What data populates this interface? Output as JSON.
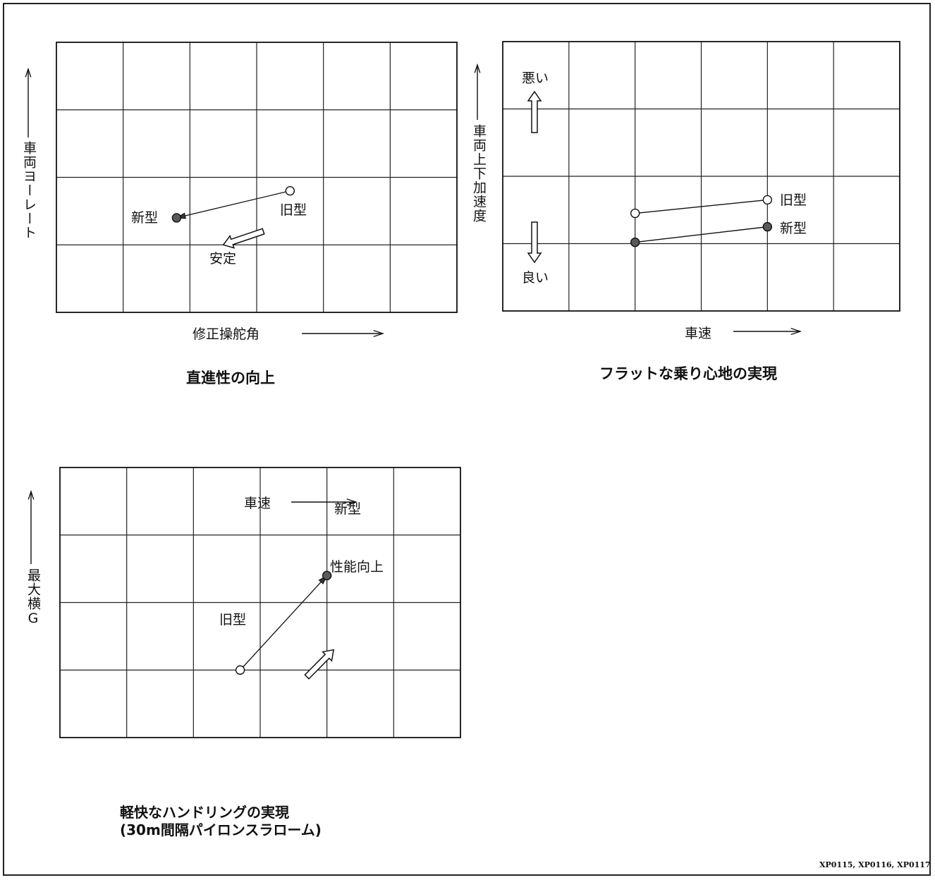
{
  "chart_data": [
    {
      "type": "scatter",
      "title": "直進性の向上",
      "xlabel": "修正操舵角",
      "ylabel": "車両ヨーレート",
      "grid": true,
      "series": [
        {
          "name": "旧型",
          "marker": "open-circle",
          "points": [
            [
              3.5,
              1.8
            ]
          ]
        },
        {
          "name": "新型",
          "marker": "filled-circle",
          "points": [
            [
              1.8,
              1.4
            ]
          ]
        }
      ],
      "arrows": [
        {
          "from": [
            3.5,
            1.8
          ],
          "to": [
            1.8,
            1.4
          ],
          "style": "line"
        },
        {
          "from": [
            3.1,
            1.2
          ],
          "to": [
            2.5,
            1.0
          ],
          "style": "hollow",
          "label": "安定"
        }
      ],
      "xlim": [
        0,
        6
      ],
      "ylim": [
        0,
        4
      ]
    },
    {
      "type": "line",
      "title": "フラットな乗り心地の実現",
      "xlabel": "車速",
      "ylabel": "車両上下加速度",
      "grid": true,
      "series": [
        {
          "name": "旧型",
          "marker": "open-circle",
          "points": [
            [
              2,
              1.45
            ],
            [
              4,
              1.65
            ]
          ]
        },
        {
          "name": "新型",
          "marker": "filled-circle",
          "points": [
            [
              2,
              1.02
            ],
            [
              4,
              1.25
            ]
          ]
        }
      ],
      "annotations": [
        {
          "text": "悪い",
          "direction": "up"
        },
        {
          "text": "良い",
          "direction": "down"
        }
      ],
      "xlim": [
        0,
        6
      ],
      "ylim": [
        0,
        4
      ]
    },
    {
      "type": "scatter",
      "title": "軽快なハンドリングの実現",
      "subtitle": "(30m間隔パイロンスラローム)",
      "xlabel": "車速",
      "ylabel": "最大横G",
      "grid": true,
      "series": [
        {
          "name": "旧型",
          "marker": "open-circle",
          "points": [
            [
              2.7,
              1.0
            ]
          ]
        },
        {
          "name": "新型",
          "marker": "filled-circle",
          "points": [
            [
              4.0,
              2.4
            ]
          ]
        }
      ],
      "arrows": [
        {
          "from": [
            2.7,
            1.0
          ],
          "to": [
            4.0,
            2.4
          ],
          "style": "line"
        },
        {
          "from": [
            3.7,
            0.9
          ],
          "to": [
            4.1,
            1.3
          ],
          "style": "hollow",
          "label": "性能向上"
        }
      ],
      "xlim": [
        0,
        6
      ],
      "ylim": [
        0,
        4
      ]
    }
  ],
  "footer": {
    "code": "XP0115, XP0116, XP0117"
  }
}
